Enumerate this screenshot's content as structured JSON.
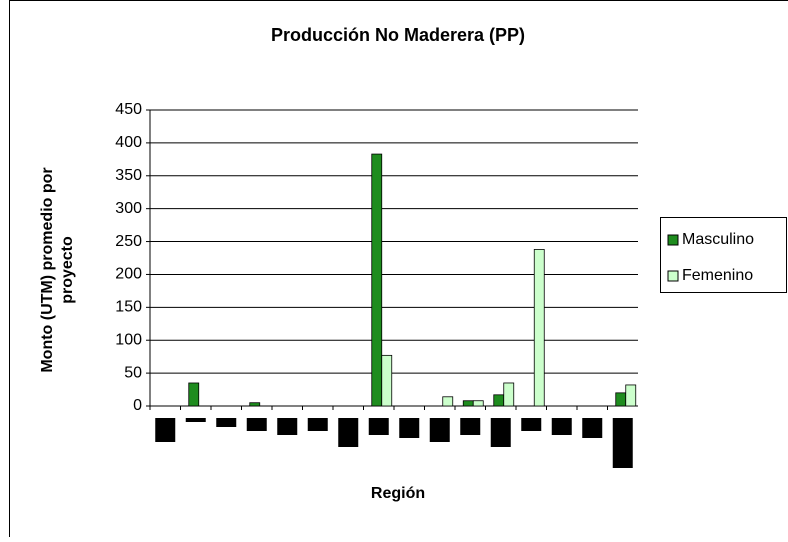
{
  "chart_data": {
    "type": "bar",
    "title": "Producción No Maderera (PP)",
    "y_label": [
      "Monto (UTM) promedio por",
      "proyecto"
    ],
    "x_label": "Región",
    "categories": [
      null,
      null,
      null,
      null,
      null,
      null,
      null,
      null,
      null,
      null,
      null,
      null,
      null,
      null,
      null,
      null
    ],
    "series": [
      {
        "name": "Masculino",
        "color": "#1e8c1e",
        "values": [
          0,
          35,
          0,
          5,
          0,
          0,
          0,
          383,
          0,
          0,
          8,
          17,
          0,
          0,
          0,
          20
        ]
      },
      {
        "name": "Femenino",
        "color": "#ccffcc",
        "values": [
          0,
          0,
          0,
          0,
          0,
          0,
          0,
          77,
          0,
          14,
          8,
          35,
          238,
          0,
          0,
          32
        ]
      }
    ],
    "ylim": [
      0,
      450
    ],
    "yticks": [
      0,
      50,
      100,
      150,
      200,
      250,
      300,
      350,
      400,
      450
    ],
    "grid": true,
    "legend": "right"
  }
}
